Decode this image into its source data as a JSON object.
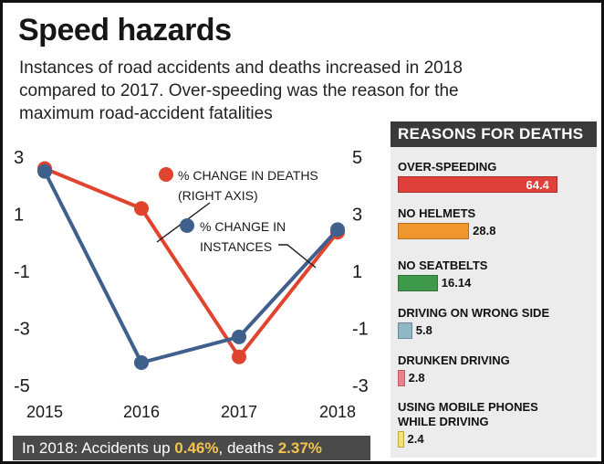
{
  "title": "Speed hazards",
  "subtitle": "Instances of road accidents and deaths increased in 2018 compared to 2017. Over-speeding was the reason for the maximum road-accident fatalities",
  "footer": {
    "prefix": "In 2018: Accidents up ",
    "accidents_value": "0.46%",
    "middle": ",  deaths ",
    "deaths_value": "2.37%"
  },
  "colors": {
    "deaths": "#e0442e",
    "instances": "#3f5f8c"
  },
  "chart_data": [
    {
      "type": "line",
      "categories": [
        "2015",
        "2016",
        "2017",
        "2018"
      ],
      "left_axis": {
        "ticks": [
          "3",
          "1",
          "-1",
          "-3",
          "-5"
        ],
        "range": [
          -5,
          3
        ]
      },
      "right_axis": {
        "ticks": [
          "5",
          "3",
          "1",
          "-1",
          "-3"
        ],
        "range": [
          -3,
          5
        ]
      },
      "series": [
        {
          "name": "% CHANGE IN DEATHS (RIGHT AXIS)",
          "axis": "right",
          "values": [
            4.6,
            3.2,
            -2.0,
            2.37
          ]
        },
        {
          "name": "% CHANGE IN INSTANCES",
          "axis": "left",
          "values": [
            2.5,
            -4.2,
            -3.3,
            0.46
          ]
        }
      ],
      "legend": {
        "deaths": [
          "% CHANGE IN DEATHS",
          "(RIGHT AXIS)"
        ],
        "instances": [
          "% CHANGE IN",
          "INSTANCES"
        ]
      },
      "grid": false
    },
    {
      "type": "bar",
      "title": "REASONS FOR DEATHS",
      "xlim": [
        0,
        70
      ],
      "items": [
        {
          "label": "OVER-SPEEDING",
          "value": 64.4,
          "value_text": "64.4",
          "color": "#e0403a"
        },
        {
          "label": "NO HELMETS",
          "value": 28.8,
          "value_text": "28.8",
          "color": "#f0962f"
        },
        {
          "label": "NO SEATBELTS",
          "value": 16.14,
          "value_text": "16.14",
          "color": "#3e9a4a"
        },
        {
          "label": "DRIVING ON WRONG SIDE",
          "value": 5.8,
          "value_text": "5.8",
          "color": "#8fb7c6"
        },
        {
          "label": "DRUNKEN DRIVING",
          "value": 2.8,
          "value_text": "2.8",
          "color": "#ee7f8e"
        },
        {
          "label": "USING MOBILE PHONES\nWHILE DRIVING",
          "value": 2.4,
          "value_text": "2.4",
          "color": "#f3e36a"
        }
      ]
    }
  ]
}
